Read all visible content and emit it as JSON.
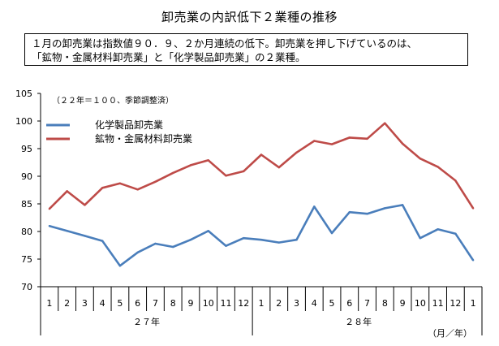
{
  "title": "卸売業の内訳低下２業種の推移",
  "note": {
    "line1": "１月の卸売業は指数値９０．９、２か月連続の低下。卸売業を押し下げているのは、",
    "line2": "「鉱物・金属材料卸売業」と「化学製品卸売業」の２業種。"
  },
  "chart_data": {
    "type": "line",
    "title": "卸売業の内訳低下２業種の推移",
    "caption": "（２２年＝１００、季節調整済）",
    "xlabel": "（月／年）",
    "ylabel": "",
    "ylim": [
      70,
      105
    ],
    "yticks": [
      70,
      75,
      80,
      85,
      90,
      95,
      100,
      105
    ],
    "categories": [
      "1",
      "2",
      "3",
      "4",
      "5",
      "6",
      "7",
      "8",
      "9",
      "10",
      "11",
      "12",
      "1",
      "2",
      "3",
      "4",
      "5",
      "6",
      "7",
      "8",
      "9",
      "10",
      "11",
      "12",
      "1"
    ],
    "year_groups": [
      {
        "label": "２７年",
        "start": 0,
        "end": 11
      },
      {
        "label": "２８年",
        "start": 12,
        "end": 23
      }
    ],
    "grid": false,
    "legend_position": "top-left",
    "series": [
      {
        "name": "化学製品卸売業",
        "color": "#4a7ebb",
        "values": [
          81.0,
          80.1,
          79.2,
          78.3,
          73.8,
          76.2,
          77.8,
          77.2,
          78.5,
          80.1,
          77.4,
          78.8,
          78.5,
          78.0,
          78.5,
          84.5,
          79.7,
          83.5,
          83.2,
          84.2,
          84.8,
          78.8,
          80.4,
          79.6,
          74.8
        ]
      },
      {
        "name": "鉱物・金属材料卸売業",
        "color": "#be4b48",
        "values": [
          84.1,
          87.3,
          84.8,
          87.9,
          88.7,
          87.6,
          89.0,
          90.6,
          92.0,
          92.9,
          90.1,
          90.9,
          93.9,
          91.6,
          94.3,
          96.4,
          95.8,
          97.0,
          96.8,
          99.6,
          95.9,
          93.2,
          91.7,
          89.2,
          84.2
        ]
      }
    ]
  }
}
